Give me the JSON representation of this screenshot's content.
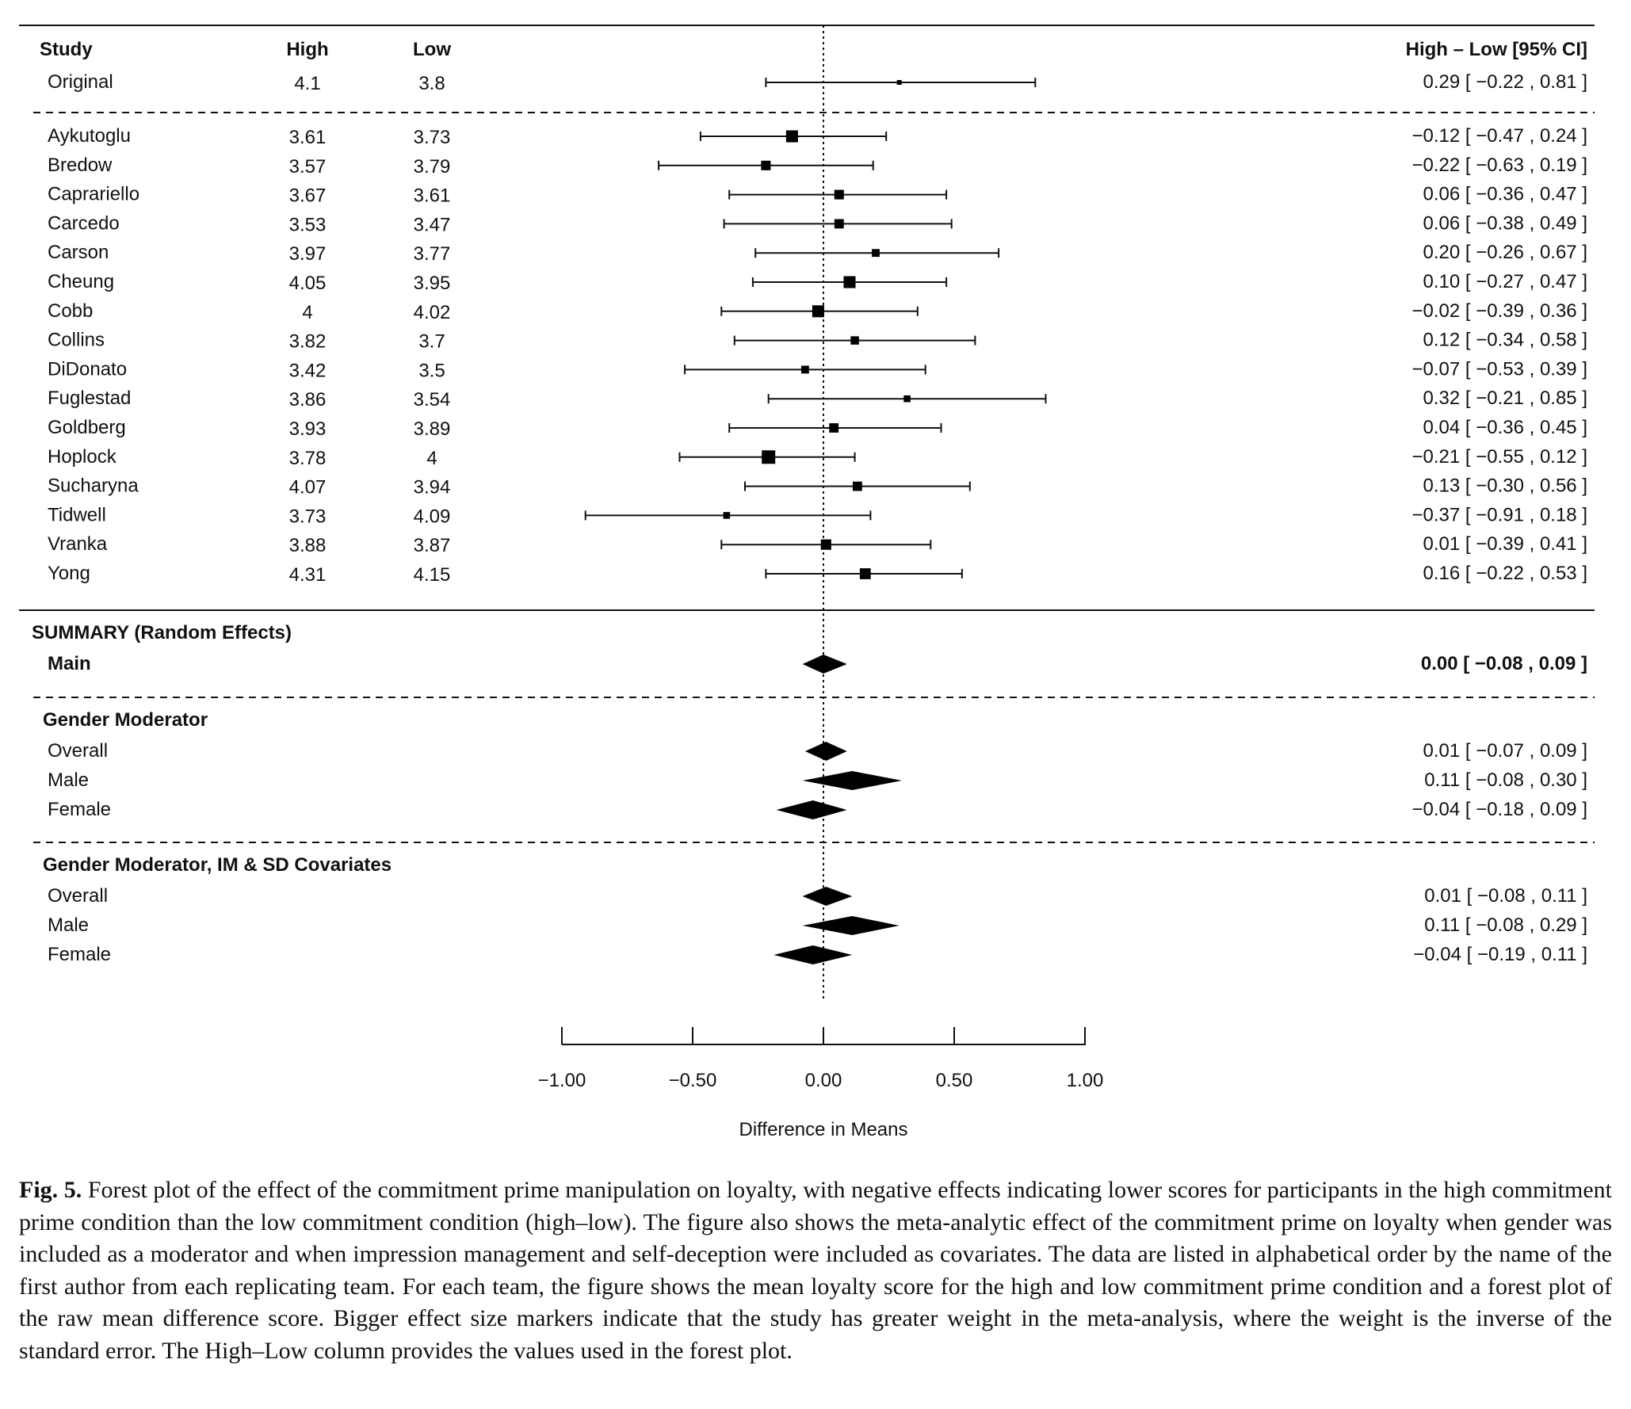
{
  "columns": {
    "study": "Study",
    "high": "High",
    "low": "Low",
    "effect": "High – Low [95% CI]"
  },
  "original": {
    "label": "Original",
    "high": "4.1",
    "low": "3.8",
    "est": 0.29,
    "lo": -0.22,
    "hi": 0.81,
    "text": "0.29 [ −0.22 , 0.81 ]"
  },
  "studies": [
    {
      "label": "Aykutoglu",
      "high": "3.61",
      "low": "3.73",
      "est": -0.12,
      "lo": -0.47,
      "hi": 0.24,
      "weight": 0.85,
      "text": "−0.12 [ −0.47 , 0.24 ]"
    },
    {
      "label": "Bredow",
      "high": "3.57",
      "low": "3.79",
      "est": -0.22,
      "lo": -0.63,
      "hi": 0.19,
      "weight": 0.62,
      "text": "−0.22 [ −0.63 , 0.19 ]"
    },
    {
      "label": "Caprariello",
      "high": "3.67",
      "low": "3.61",
      "est": 0.06,
      "lo": -0.36,
      "hi": 0.47,
      "weight": 0.62,
      "text": "0.06 [ −0.36 , 0.47 ]"
    },
    {
      "label": "Carcedo",
      "high": "3.53",
      "low": "3.47",
      "est": 0.06,
      "lo": -0.38,
      "hi": 0.49,
      "weight": 0.6,
      "text": "0.06 [ −0.38 , 0.49 ]"
    },
    {
      "label": "Carson",
      "high": "3.97",
      "low": "3.77",
      "est": 0.2,
      "lo": -0.26,
      "hi": 0.67,
      "weight": 0.45,
      "text": "0.20 [ −0.26 , 0.67 ]"
    },
    {
      "label": "Cheung",
      "high": "4.05",
      "low": "3.95",
      "est": 0.1,
      "lo": -0.27,
      "hi": 0.47,
      "weight": 0.85,
      "text": "0.10 [ −0.27 , 0.47 ]"
    },
    {
      "label": "Cobb",
      "high": "4",
      "low": "4.02",
      "est": -0.02,
      "lo": -0.39,
      "hi": 0.36,
      "weight": 0.85,
      "text": "−0.02 [ −0.39 , 0.36 ]"
    },
    {
      "label": "Collins",
      "high": "3.82",
      "low": "3.7",
      "est": 0.12,
      "lo": -0.34,
      "hi": 0.58,
      "weight": 0.5,
      "text": "0.12 [ −0.34 , 0.58 ]"
    },
    {
      "label": "DiDonato",
      "high": "3.42",
      "low": "3.5",
      "est": -0.07,
      "lo": -0.53,
      "hi": 0.39,
      "weight": 0.45,
      "text": "−0.07 [ −0.53 , 0.39 ]"
    },
    {
      "label": "Fuglestad",
      "high": "3.86",
      "low": "3.54",
      "est": 0.32,
      "lo": -0.21,
      "hi": 0.85,
      "weight": 0.35,
      "text": "0.32 [ −0.21 , 0.85 ]"
    },
    {
      "label": "Goldberg",
      "high": "3.93",
      "low": "3.89",
      "est": 0.04,
      "lo": -0.36,
      "hi": 0.45,
      "weight": 0.6,
      "text": "0.04 [ −0.36 , 0.45 ]"
    },
    {
      "label": "Hoplock",
      "high": "3.78",
      "low": "4",
      "est": -0.21,
      "lo": -0.55,
      "hi": 0.12,
      "weight": 1.0,
      "text": "−0.21 [ −0.55 , 0.12 ]"
    },
    {
      "label": "Sucharyna",
      "high": "4.07",
      "low": "3.94",
      "est": 0.13,
      "lo": -0.3,
      "hi": 0.56,
      "weight": 0.6,
      "text": "0.13 [ −0.30 , 0.56 ]"
    },
    {
      "label": "Tidwell",
      "high": "3.73",
      "low": "4.09",
      "est": -0.37,
      "lo": -0.91,
      "hi": 0.18,
      "weight": 0.35,
      "text": "−0.37 [ −0.91 , 0.18 ]"
    },
    {
      "label": "Vranka",
      "high": "3.88",
      "low": "3.87",
      "est": 0.01,
      "lo": -0.39,
      "hi": 0.41,
      "weight": 0.7,
      "text": "0.01 [ −0.39 , 0.41 ]"
    },
    {
      "label": "Yong",
      "high": "4.31",
      "low": "4.15",
      "est": 0.16,
      "lo": -0.22,
      "hi": 0.53,
      "weight": 0.75,
      "text": "0.16 [ −0.22 , 0.53 ]"
    }
  ],
  "summary": {
    "heading": "SUMMARY (Random Effects)",
    "main": {
      "label": "Main",
      "est": 0.0,
      "lo": -0.08,
      "hi": 0.09,
      "text": "0.00 [ −0.08 , 0.09 ]"
    }
  },
  "gender": {
    "heading": "Gender Moderator",
    "rows": [
      {
        "label": "Overall",
        "est": 0.01,
        "lo": -0.07,
        "hi": 0.09,
        "text": "0.01 [ −0.07 , 0.09 ]"
      },
      {
        "label": "Male",
        "est": 0.11,
        "lo": -0.08,
        "hi": 0.3,
        "text": "0.11 [ −0.08 , 0.30 ]"
      },
      {
        "label": "Female",
        "est": -0.04,
        "lo": -0.18,
        "hi": 0.09,
        "text": "−0.04 [ −0.18 , 0.09 ]"
      }
    ]
  },
  "gender_cov": {
    "heading": "Gender Moderator, IM & SD Covariates",
    "rows": [
      {
        "label": "Overall",
        "est": 0.01,
        "lo": -0.08,
        "hi": 0.11,
        "text": "0.01 [ −0.08 , 0.11 ]"
      },
      {
        "label": "Male",
        "est": 0.11,
        "lo": -0.08,
        "hi": 0.29,
        "text": "0.11 [ −0.08 , 0.29 ]"
      },
      {
        "label": "Female",
        "est": -0.04,
        "lo": -0.19,
        "hi": 0.11,
        "text": "−0.04 [ −0.19 , 0.11 ]"
      }
    ]
  },
  "axis": {
    "label": "Difference in Means",
    "ticks": [
      -1.0,
      -0.5,
      0.0,
      0.5,
      1.0
    ],
    "tick_labels": [
      "−1.00",
      "−0.50",
      "0.00",
      "0.50",
      "1.00"
    ]
  },
  "caption": {
    "label": "Fig. 5.",
    "text": "Forest plot of the effect of the commitment prime manipulation on loyalty, with negative effects indicating lower scores for participants in the high commitment prime condition than the low commitment condition (high–low). The figure also shows the meta-analytic effect of the commitment prime on loyalty when gender was included as a moderator and when impression management and self-deception were included as covariates. The data are listed in alphabetical order by the name of the first author from each replicating team. For each team, the figure shows the mean loyalty score for the high and low commitment prime condition and a forest plot of the raw mean difference score. Bigger effect size markers indicate that the study has greater weight in the meta-analysis, where the weight is the inverse of the standard error. The High–Low column provides the values used in the forest plot."
  },
  "chart_data": {
    "type": "forest",
    "title": "",
    "xlabel": "Difference in Means",
    "xlim": [
      -1.0,
      1.0
    ],
    "reference_line": 0.0,
    "grid": false,
    "categories": [
      "Original",
      "Aykutoglu",
      "Bredow",
      "Caprariello",
      "Carcedo",
      "Carson",
      "Cheung",
      "Cobb",
      "Collins",
      "DiDonato",
      "Fuglestad",
      "Goldberg",
      "Hoplock",
      "Sucharyna",
      "Tidwell",
      "Vranka",
      "Yong"
    ],
    "estimate": [
      0.29,
      -0.12,
      -0.22,
      0.06,
      0.06,
      0.2,
      0.1,
      -0.02,
      0.12,
      -0.07,
      0.32,
      0.04,
      -0.21,
      0.13,
      -0.37,
      0.01,
      0.16
    ],
    "ci_lower": [
      -0.22,
      -0.47,
      -0.63,
      -0.36,
      -0.38,
      -0.26,
      -0.27,
      -0.39,
      -0.34,
      -0.53,
      -0.21,
      -0.36,
      -0.55,
      -0.3,
      -0.91,
      -0.39,
      -0.22
    ],
    "ci_upper": [
      0.81,
      0.24,
      0.19,
      0.47,
      0.49,
      0.67,
      0.47,
      0.36,
      0.58,
      0.39,
      0.85,
      0.45,
      0.12,
      0.56,
      0.18,
      0.41,
      0.53
    ],
    "summaries": [
      {
        "group": "SUMMARY (Random Effects)",
        "label": "Main",
        "estimate": 0.0,
        "ci": [
          -0.08,
          0.09
        ]
      },
      {
        "group": "Gender Moderator",
        "label": "Overall",
        "estimate": 0.01,
        "ci": [
          -0.07,
          0.09
        ]
      },
      {
        "group": "Gender Moderator",
        "label": "Male",
        "estimate": 0.11,
        "ci": [
          -0.08,
          0.3
        ]
      },
      {
        "group": "Gender Moderator",
        "label": "Female",
        "estimate": -0.04,
        "ci": [
          -0.18,
          0.09
        ]
      },
      {
        "group": "Gender Moderator, IM & SD Covariates",
        "label": "Overall",
        "estimate": 0.01,
        "ci": [
          -0.08,
          0.11
        ]
      },
      {
        "group": "Gender Moderator, IM & SD Covariates",
        "label": "Male",
        "estimate": 0.11,
        "ci": [
          -0.08,
          0.29
        ]
      },
      {
        "group": "Gender Moderator, IM & SD Covariates",
        "label": "Female",
        "estimate": -0.04,
        "ci": [
          -0.19,
          0.11
        ]
      }
    ]
  }
}
